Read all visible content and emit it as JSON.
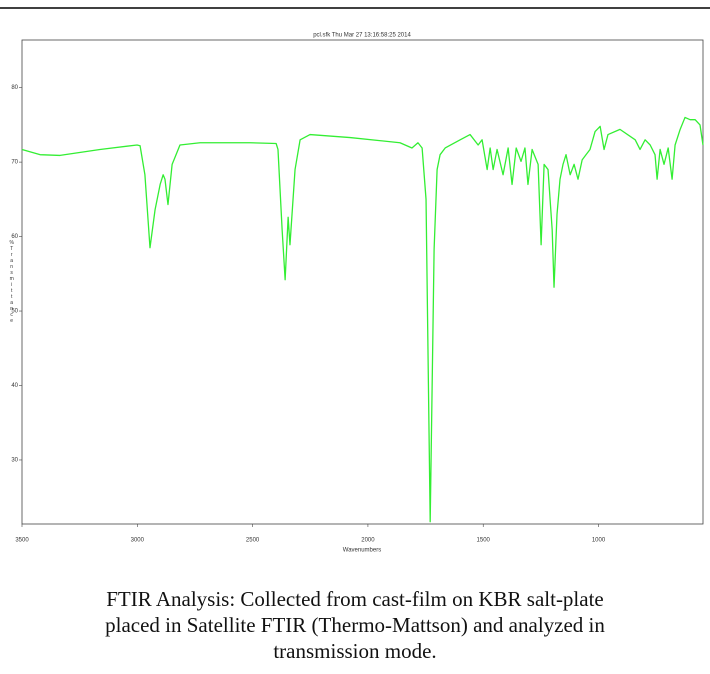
{
  "chart_data": {
    "type": "line",
    "title": "pcl.sfk  Thu Mar 27 13:16:58:25 2014",
    "x_label": "Wavenumbers",
    "y_label": "%Transmittance",
    "xlim": [
      3500,
      547
    ],
    "xticks": [
      3500,
      3000,
      2500,
      2000,
      1500,
      1000
    ],
    "ylim": [
      21.4,
      86.4
    ],
    "yticks": [
      80,
      70,
      60,
      50,
      40,
      30
    ],
    "grid": false,
    "x": [
      3500,
      3422,
      3335,
      3162,
      3001,
      2988,
      2967,
      2945,
      2923,
      2901,
      2888,
      2880,
      2867,
      2849,
      2815,
      2728,
      2511,
      2398,
      2390,
      2372,
      2359,
      2346,
      2338,
      2316,
      2294,
      2251,
      2077,
      1861,
      1809,
      1783,
      1765,
      1748,
      1730,
      1713,
      1700,
      1687,
      1665,
      1600,
      1557,
      1522,
      1505,
      1483,
      1470,
      1457,
      1440,
      1414,
      1392,
      1375,
      1357,
      1336,
      1319,
      1306,
      1288,
      1262,
      1249,
      1236,
      1219,
      1201,
      1193,
      1180,
      1167,
      1154,
      1141,
      1123,
      1106,
      1089,
      1071,
      1054,
      1037,
      1015,
      993,
      976,
      959,
      907,
      841,
      820,
      798,
      776,
      755,
      746,
      733,
      716,
      698,
      681,
      668,
      646,
      625,
      603,
      581,
      560,
      547
    ],
    "series": [
      {
        "name": "pcl.sfk",
        "color": "#33ee33",
        "values": [
          71.7,
          71.0,
          70.9,
          71.7,
          72.3,
          72.2,
          68.3,
          58.5,
          63.6,
          67.0,
          68.3,
          67.7,
          64.3,
          69.7,
          72.3,
          72.6,
          72.6,
          72.5,
          71.7,
          60.9,
          54.2,
          62.6,
          58.9,
          69.0,
          73.0,
          73.7,
          73.3,
          72.6,
          71.9,
          72.6,
          71.9,
          65.0,
          21.7,
          58.3,
          69.0,
          71.0,
          71.9,
          73.0,
          73.7,
          72.3,
          73.0,
          69.0,
          71.9,
          69.0,
          71.7,
          68.3,
          71.9,
          67.0,
          71.9,
          70.1,
          71.9,
          67.0,
          71.7,
          69.7,
          58.9,
          69.7,
          69.0,
          60.9,
          53.2,
          63.0,
          67.7,
          69.7,
          71.0,
          68.3,
          69.7,
          67.7,
          70.3,
          71.0,
          71.7,
          74.1,
          74.8,
          71.7,
          73.7,
          74.4,
          73.0,
          71.7,
          73.0,
          72.3,
          71.0,
          67.7,
          71.7,
          69.7,
          71.9,
          67.7,
          72.3,
          74.4,
          76.0,
          75.7,
          75.7,
          75.0,
          72.3
        ]
      }
    ]
  },
  "caption": "FTIR Analysis: Collected from cast-film on KBR salt-plate placed in Satellite FTIR (Thermo-Mattson) and analyzed in transmission mode."
}
